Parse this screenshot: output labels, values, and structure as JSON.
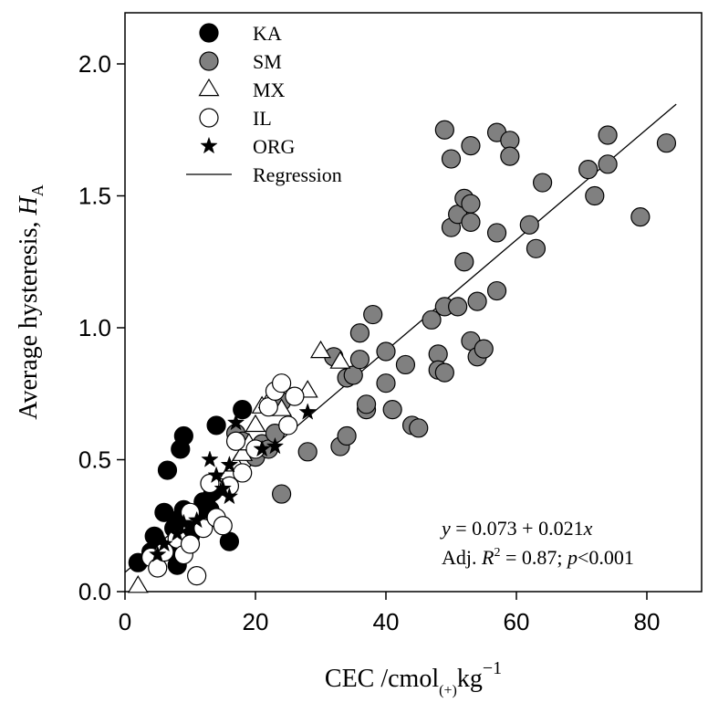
{
  "chart_data": {
    "type": "scatter",
    "xlabel_main": "CEC /cmol",
    "xlabel_sub": "(+)",
    "xlabel_after": "kg",
    "xlabel_sup": "−1",
    "ylabel_main": "Average hysteresis, ",
    "ylabel_var": "H",
    "ylabel_sub": "A",
    "xlim": [
      0,
      85
    ],
    "ylim": [
      0,
      2.2
    ],
    "xticks": [
      0,
      20,
      40,
      60,
      80
    ],
    "yticks": [
      0.0,
      0.5,
      1.0,
      1.5,
      2.0
    ],
    "xtick_labels": [
      "0",
      "20",
      "40",
      "60",
      "80"
    ],
    "ytick_labels": [
      "0.0",
      "0.5",
      "1.0",
      "1.5",
      "2.0"
    ],
    "legend_position": "top-left",
    "series": [
      {
        "name": "KA",
        "marker": "filled-circle",
        "color": "#000000",
        "points": [
          [
            2,
            0.11
          ],
          [
            4,
            0.15
          ],
          [
            4.5,
            0.21
          ],
          [
            5,
            0.18
          ],
          [
            6,
            0.3
          ],
          [
            6.5,
            0.46
          ],
          [
            7,
            0.16
          ],
          [
            7.5,
            0.24
          ],
          [
            8,
            0.27
          ],
          [
            8.5,
            0.54
          ],
          [
            9,
            0.59
          ],
          [
            9,
            0.31
          ],
          [
            10,
            0.21
          ],
          [
            10.5,
            0.28
          ],
          [
            11,
            0.26
          ],
          [
            12,
            0.34
          ],
          [
            13,
            0.31
          ],
          [
            13.5,
            0.38
          ],
          [
            14,
            0.63
          ],
          [
            15,
            0.4
          ],
          [
            16,
            0.19
          ],
          [
            18,
            0.69
          ],
          [
            8,
            0.1
          ]
        ]
      },
      {
        "name": "SM",
        "marker": "filled-circle",
        "color": "#808080",
        "points": [
          [
            17,
            0.6
          ],
          [
            18,
            0.57
          ],
          [
            19,
            0.53
          ],
          [
            20,
            0.51
          ],
          [
            21,
            0.56
          ],
          [
            22,
            0.54
          ],
          [
            23,
            0.6
          ],
          [
            24,
            0.37
          ],
          [
            24,
            0.72
          ],
          [
            28,
            0.53
          ],
          [
            32,
            0.89
          ],
          [
            33,
            0.55
          ],
          [
            34,
            0.59
          ],
          [
            34,
            0.81
          ],
          [
            35,
            0.82
          ],
          [
            36,
            0.88
          ],
          [
            36,
            0.98
          ],
          [
            37,
            0.69
          ],
          [
            37,
            0.71
          ],
          [
            38,
            1.05
          ],
          [
            40,
            0.91
          ],
          [
            40,
            0.79
          ],
          [
            41,
            0.69
          ],
          [
            43,
            0.86
          ],
          [
            44,
            0.63
          ],
          [
            45,
            0.62
          ],
          [
            47,
            1.03
          ],
          [
            48,
            0.9
          ],
          [
            48,
            0.84
          ],
          [
            49,
            0.83
          ],
          [
            49,
            1.08
          ],
          [
            49,
            1.75
          ],
          [
            50,
            1.38
          ],
          [
            50,
            1.64
          ],
          [
            51,
            1.08
          ],
          [
            51,
            1.43
          ],
          [
            52,
            1.49
          ],
          [
            52,
            1.25
          ],
          [
            53,
            1.47
          ],
          [
            53,
            1.4
          ],
          [
            53,
            1.69
          ],
          [
            53,
            0.95
          ],
          [
            54,
            1.1
          ],
          [
            54,
            0.89
          ],
          [
            55,
            0.92
          ],
          [
            57,
            1.74
          ],
          [
            57,
            1.14
          ],
          [
            57,
            1.36
          ],
          [
            59,
            1.71
          ],
          [
            59,
            1.65
          ],
          [
            62,
            1.39
          ],
          [
            63,
            1.3
          ],
          [
            64,
            1.55
          ],
          [
            71,
            1.6
          ],
          [
            72,
            1.5
          ],
          [
            74,
            1.62
          ],
          [
            74,
            1.73
          ],
          [
            79,
            1.42
          ],
          [
            83,
            1.7
          ]
        ]
      },
      {
        "name": "MX",
        "marker": "open-triangle",
        "color": "#ffffff",
        "points": [
          [
            2,
            0.02
          ],
          [
            15,
            0.41
          ],
          [
            16,
            0.45
          ],
          [
            17,
            0.48
          ],
          [
            18,
            0.52
          ],
          [
            19,
            0.56
          ],
          [
            20,
            0.63
          ],
          [
            21,
            0.7
          ],
          [
            22,
            0.72
          ],
          [
            24,
            0.69
          ],
          [
            28,
            0.76
          ],
          [
            30,
            0.91
          ],
          [
            33,
            0.87
          ]
        ]
      },
      {
        "name": "IL",
        "marker": "open-circle",
        "color": "#ffffff",
        "points": [
          [
            4,
            0.13
          ],
          [
            5,
            0.09
          ],
          [
            6,
            0.15
          ],
          [
            8,
            0.2
          ],
          [
            9,
            0.14
          ],
          [
            10,
            0.18
          ],
          [
            10,
            0.3
          ],
          [
            11,
            0.06
          ],
          [
            12,
            0.24
          ],
          [
            13,
            0.41
          ],
          [
            14,
            0.28
          ],
          [
            15,
            0.25
          ],
          [
            16,
            0.4
          ],
          [
            17,
            0.57
          ],
          [
            18,
            0.45
          ],
          [
            20,
            0.54
          ],
          [
            22,
            0.7
          ],
          [
            23,
            0.76
          ],
          [
            24,
            0.79
          ],
          [
            25,
            0.63
          ],
          [
            26,
            0.74
          ]
        ]
      },
      {
        "name": "ORG",
        "marker": "star",
        "color": "#000000",
        "points": [
          [
            5,
            0.14
          ],
          [
            6,
            0.18
          ],
          [
            8,
            0.22
          ],
          [
            9,
            0.26
          ],
          [
            11,
            0.27
          ],
          [
            13,
            0.34
          ],
          [
            13,
            0.5
          ],
          [
            14,
            0.44
          ],
          [
            15,
            0.39
          ],
          [
            16,
            0.48
          ],
          [
            16,
            0.36
          ],
          [
            17,
            0.64
          ],
          [
            21,
            0.54
          ],
          [
            23,
            0.55
          ],
          [
            28,
            0.68
          ]
        ]
      }
    ],
    "regression": {
      "name": "Regression",
      "intercept": 0.073,
      "slope": 0.021,
      "x_range": [
        0,
        84.5
      ]
    },
    "annotation": {
      "eq_y": "y",
      "eq_rest": " = 0.073 + 0.021",
      "eq_x": "x",
      "r2_prefix": "Adj. ",
      "r2_R": "R",
      "r2_sup": "2",
      "r2_middle": " = 0.87; ",
      "r2_p": "p",
      "r2_end": "<0.001"
    }
  }
}
